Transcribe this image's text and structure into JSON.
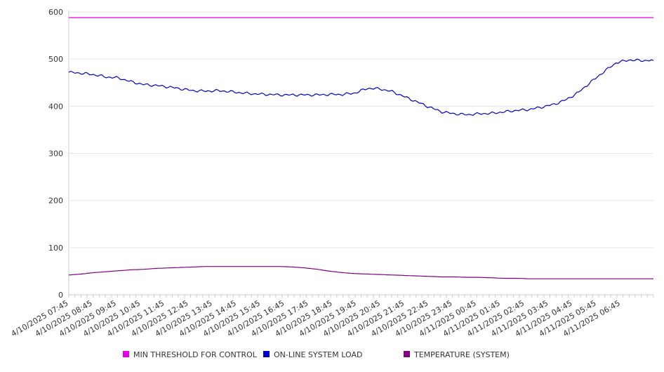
{
  "chart_data": {
    "type": "line",
    "title": "",
    "xlabel": "",
    "ylabel": "",
    "ylim": [
      0,
      600
    ],
    "yticks": [
      0,
      100,
      200,
      300,
      400,
      500,
      600
    ],
    "grid": "horizontal",
    "legend_position": "bottom",
    "x_tick_labels": [
      "4/10/2025 07:45",
      "4/10/2025 08:45",
      "4/10/2025 09:45",
      "4/10/2025 10:45",
      "4/10/2025 11:45",
      "4/10/2025 12:45",
      "4/10/2025 13:45",
      "4/10/2025 14:45",
      "4/10/2025 15:45",
      "4/10/2025 16:45",
      "4/10/2025 17:45",
      "4/10/2025 18:45",
      "4/10/2025 19:45",
      "4/10/2025 20:45",
      "4/10/2025 21:45",
      "4/10/2025 22:45",
      "4/10/2025 23:45",
      "4/11/2025 00:45",
      "4/11/2025 01:45",
      "4/11/2025 02:45",
      "4/11/2025 03:45",
      "4/11/2025 04:45",
      "4/11/2025 05:45",
      "4/11/2025 06:45"
    ],
    "x": [
      "07:45",
      "08:15",
      "08:45",
      "09:15",
      "09:45",
      "10:15",
      "10:45",
      "11:15",
      "11:45",
      "12:15",
      "12:45",
      "13:15",
      "13:45",
      "14:15",
      "14:45",
      "15:15",
      "15:45",
      "16:15",
      "16:45",
      "17:15",
      "17:45",
      "18:15",
      "18:45",
      "19:15",
      "19:45",
      "20:15",
      "20:45",
      "21:15",
      "21:45",
      "22:15",
      "22:45",
      "23:15",
      "23:45",
      "00:15",
      "00:45",
      "01:15",
      "01:45",
      "02:15",
      "02:45",
      "03:15",
      "03:45",
      "04:15",
      "04:45",
      "05:15",
      "05:45",
      "06:15",
      "06:45",
      "07:15"
    ],
    "series": [
      {
        "name": "MIN THRESHOLD FOR CONTROL",
        "color": "#e600e6",
        "values": [
          588,
          588,
          588,
          588,
          588,
          588,
          588,
          588,
          588,
          588,
          588,
          588,
          588,
          588,
          588,
          588,
          588,
          588,
          588,
          588,
          588,
          588,
          588,
          588,
          588,
          588,
          588,
          588,
          588,
          588,
          588,
          588,
          588,
          588,
          588,
          588,
          588,
          588,
          588,
          588,
          588,
          588,
          588,
          588,
          588,
          588,
          588,
          588
        ]
      },
      {
        "name": "ON-LINE SYSTEM LOAD",
        "color": "#0000cc",
        "values": [
          472,
          470,
          467,
          462,
          460,
          452,
          446,
          444,
          441,
          437,
          433,
          432,
          433,
          431,
          428,
          426,
          425,
          424,
          424,
          424,
          424,
          425,
          425,
          428,
          438,
          437,
          431,
          420,
          409,
          398,
          388,
          384,
          382,
          384,
          385,
          388,
          391,
          393,
          398,
          404,
          414,
          430,
          452,
          473,
          492,
          498,
          497,
          497
        ]
      },
      {
        "name": "TEMPERATURE (SYSTEM)",
        "color": "#800080",
        "values": [
          42,
          44,
          47,
          49,
          51,
          53,
          54,
          56,
          57,
          58,
          59,
          60,
          60,
          60,
          60,
          60,
          60,
          60,
          59,
          57,
          54,
          50,
          47,
          45,
          44,
          43,
          42,
          41,
          40,
          39,
          38,
          38,
          37,
          37,
          36,
          35,
          35,
          34,
          34,
          34,
          34,
          34,
          34,
          34,
          34,
          34,
          34,
          34
        ]
      }
    ]
  }
}
